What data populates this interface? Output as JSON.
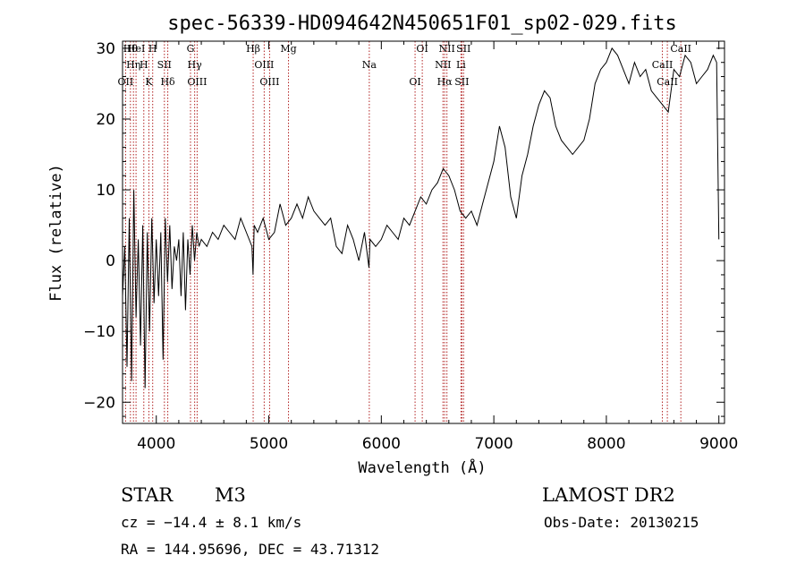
{
  "chart_data": {
    "type": "line",
    "title": "spec-56339-HD094642N450651F01_sp02-029.fits",
    "xlabel": "Wavelength (Å)",
    "ylabel": "Flux (relative)",
    "xlim": [
      3700,
      9050
    ],
    "ylim": [
      -23,
      31
    ],
    "x_ticks": [
      4000,
      5000,
      6000,
      7000,
      8000,
      9000
    ],
    "y_ticks": [
      -20,
      -10,
      0,
      10,
      20,
      30
    ],
    "grid": false,
    "series": [
      {
        "x": [
          3700,
          3720,
          3740,
          3760,
          3780,
          3800,
          3820,
          3840,
          3860,
          3880,
          3900,
          3920,
          3940,
          3960,
          3980,
          4000,
          4020,
          4040,
          4060,
          4080,
          4100,
          4120,
          4140,
          4160,
          4180,
          4200,
          4220,
          4240,
          4260,
          4280,
          4300,
          4320,
          4340,
          4360,
          4380,
          4400,
          4450,
          4500,
          4550,
          4600,
          4650,
          4700,
          4750,
          4800,
          4850,
          4860,
          4870,
          4900,
          4950,
          5000,
          5050,
          5100,
          5150,
          5200,
          5250,
          5300,
          5350,
          5400,
          5450,
          5500,
          5550,
          5600,
          5650,
          5700,
          5750,
          5800,
          5850,
          5890,
          5900,
          5950,
          6000,
          6050,
          6100,
          6150,
          6200,
          6250,
          6300,
          6350,
          6400,
          6450,
          6500,
          6550,
          6600,
          6650,
          6700,
          6750,
          6800,
          6850,
          6900,
          6950,
          7000,
          7050,
          7100,
          7150,
          7200,
          7250,
          7300,
          7350,
          7400,
          7450,
          7500,
          7550,
          7600,
          7650,
          7700,
          7750,
          7800,
          7850,
          7900,
          7950,
          8000,
          8050,
          8100,
          8150,
          8200,
          8250,
          8300,
          8350,
          8400,
          8450,
          8500,
          8550,
          8600,
          8650,
          8700,
          8750,
          8800,
          8850,
          8900,
          8950,
          8980,
          9000
        ],
        "y": [
          -5,
          2,
          -15,
          6,
          -17,
          10,
          -8,
          3,
          -12,
          5,
          -18,
          4,
          -10,
          6,
          -6,
          3,
          -5,
          4,
          -14,
          6,
          -3,
          5,
          -4,
          2,
          0,
          3,
          -5,
          4,
          -7,
          3,
          -2,
          5,
          0,
          4,
          2,
          3,
          2,
          4,
          3,
          5,
          4,
          3,
          6,
          4,
          2,
          -2,
          5,
          4,
          6,
          3,
          4,
          8,
          5,
          6,
          8,
          6,
          9,
          7,
          6,
          5,
          6,
          2,
          1,
          5,
          3,
          0,
          4,
          -1,
          3,
          2,
          3,
          5,
          4,
          3,
          6,
          5,
          7,
          9,
          8,
          10,
          11,
          13,
          12,
          10,
          7,
          6,
          7,
          5,
          8,
          11,
          14,
          19,
          16,
          9,
          6,
          12,
          15,
          19,
          22,
          24,
          23,
          19,
          17,
          16,
          15,
          16,
          17,
          20,
          25,
          27,
          28,
          30,
          29,
          27,
          25,
          28,
          26,
          27,
          24,
          23,
          22,
          21,
          27,
          26,
          29,
          28,
          25,
          26,
          27,
          29,
          28,
          3
        ]
      }
    ],
    "lines": [
      {
        "wl": 3770,
        "label": "Hθ"
      },
      {
        "wl": 3797,
        "label": "Hη"
      },
      {
        "wl": 3727,
        "label": "OII"
      },
      {
        "wl": 3820,
        "label": "HeI"
      },
      {
        "wl": 3889,
        "label": "H"
      },
      {
        "wl": 3934,
        "label": "K"
      },
      {
        "wl": 3968,
        "label": "H"
      },
      {
        "wl": 4072,
        "label": "SII"
      },
      {
        "wl": 4102,
        "label": "Hδ"
      },
      {
        "wl": 4304,
        "label": "G"
      },
      {
        "wl": 4341,
        "label": "Hγ"
      },
      {
        "wl": 4363,
        "label": "OIII"
      },
      {
        "wl": 4861,
        "label": "Hβ"
      },
      {
        "wl": 4959,
        "label": "OIII"
      },
      {
        "wl": 5007,
        "label": "OIII"
      },
      {
        "wl": 5175,
        "label": "Mg"
      },
      {
        "wl": 5893,
        "label": "Na"
      },
      {
        "wl": 6300,
        "label": "OI"
      },
      {
        "wl": 6364,
        "label": "OI"
      },
      {
        "wl": 6548,
        "label": "NII"
      },
      {
        "wl": 6563,
        "label": "Hα"
      },
      {
        "wl": 6583,
        "label": "NII"
      },
      {
        "wl": 6708,
        "label": "Li"
      },
      {
        "wl": 6716,
        "label": "SII"
      },
      {
        "wl": 6731,
        "label": "SII"
      },
      {
        "wl": 8498,
        "label": "CaII"
      },
      {
        "wl": 8542,
        "label": "CaII"
      },
      {
        "wl": 8662,
        "label": "CaII"
      }
    ]
  },
  "info": {
    "class": "STAR",
    "subclass": "M3",
    "survey": "LAMOST DR2",
    "cz": "cz = −14.4 ± 8.1 km/s",
    "obs_date": "Obs-Date: 20130215",
    "coords": "RA = 144.95696, DEC =  43.71312"
  }
}
